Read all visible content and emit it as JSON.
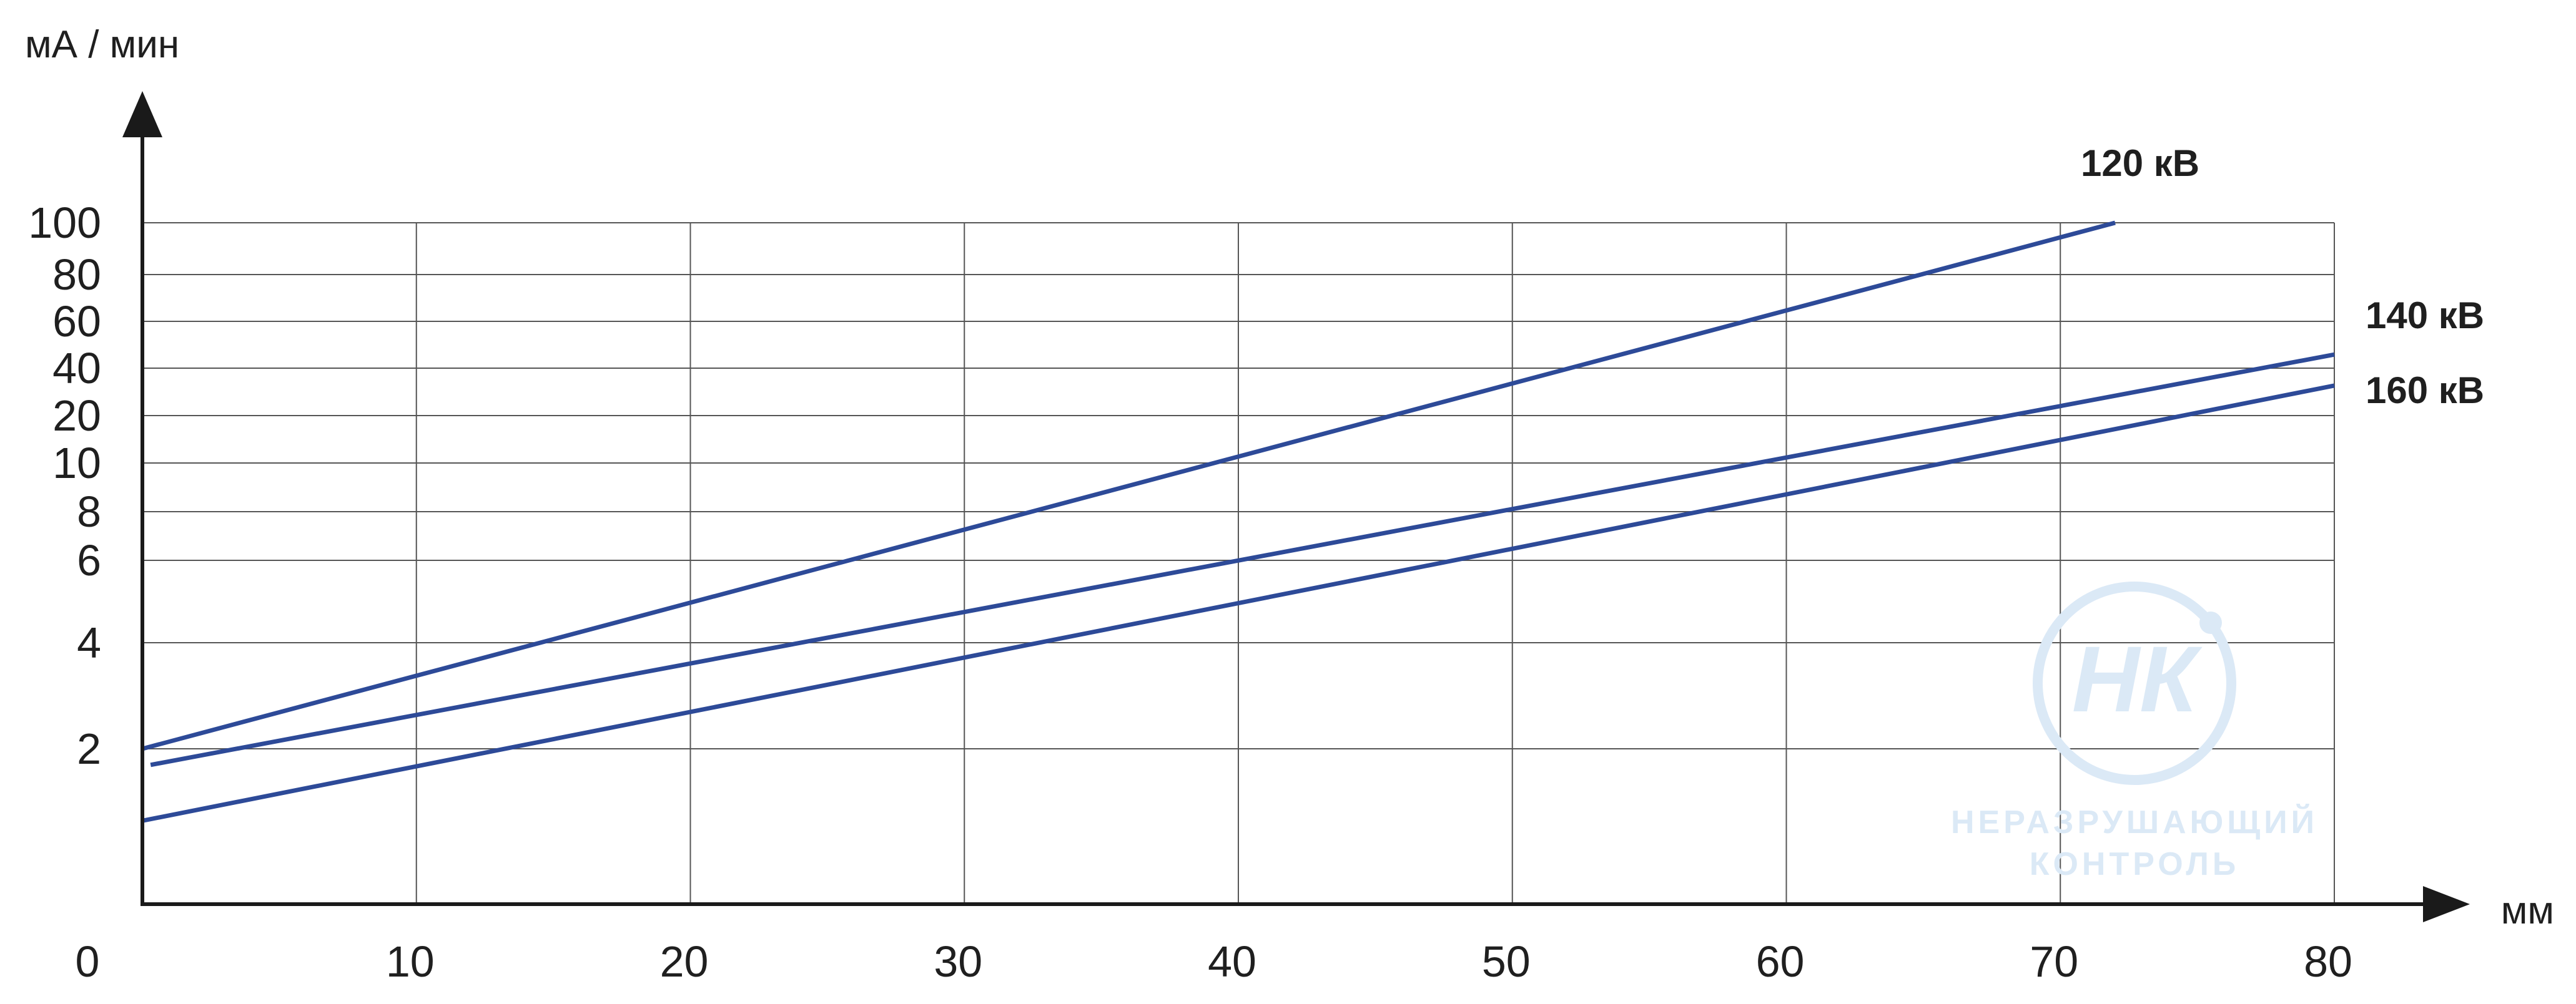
{
  "chart_data": {
    "type": "line",
    "title": "",
    "xlabel": "мм",
    "ylabel": "мА / мин",
    "x_origin_label": "0",
    "x_ticks": [
      10,
      20,
      30,
      40,
      50,
      60,
      70,
      80
    ],
    "x_tick_labels": [
      "10",
      "20",
      "30",
      "40",
      "50",
      "60",
      "70",
      "80"
    ],
    "y_ticks": [
      2,
      4,
      6,
      8,
      10,
      20,
      40,
      60,
      80,
      100
    ],
    "y_tick_labels": [
      "2",
      "4",
      "6",
      "8",
      "10",
      "20",
      "40",
      "60",
      "80",
      "100"
    ],
    "xlim": [
      0,
      80
    ],
    "y_scale": "nonlinear (tick spacing as printed)",
    "grid": true,
    "series": [
      {
        "name": "120 кВ",
        "x": [
          0,
          72
        ],
        "y": [
          2,
          100
        ]
      },
      {
        "name": "140 кВ",
        "x": [
          0.3,
          80
        ],
        "y": [
          1.8,
          45
        ]
      },
      {
        "name": "160 кВ",
        "x": [
          0,
          80
        ],
        "y": [
          1.25,
          31
        ]
      }
    ],
    "colors": {
      "series": "#2d4a98",
      "grid": "#555555",
      "axis": "#1a1a1a"
    }
  },
  "watermark": {
    "logo_text": "НК",
    "line1": "НЕРАЗРУШАЮЩИЙ",
    "line2": "КОНТРОЛЬ"
  }
}
